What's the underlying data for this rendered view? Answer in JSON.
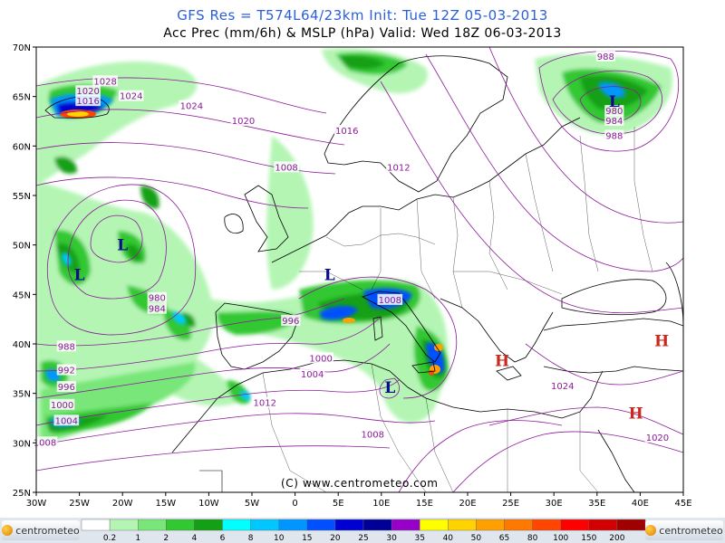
{
  "header": {
    "title": "GFS Res = T574L64/23km   Init: Tue 12Z 05-03-2013",
    "subtitle": "Acc Prec (mm/6h) & MSLP (hPa)  Valid: Wed 18Z 06-03-2013"
  },
  "map": {
    "lon_range": [
      -30,
      45
    ],
    "lat_range": [
      25,
      70
    ],
    "lat_labels": [
      "70N",
      "65N",
      "60N",
      "55N",
      "50N",
      "45N",
      "40N",
      "35N",
      "30N",
      "25N"
    ],
    "lon_labels": [
      "30W",
      "25W",
      "20W",
      "15W",
      "10W",
      "5W",
      "0",
      "5E",
      "10E",
      "15E",
      "20E",
      "25E",
      "30E",
      "35E",
      "40E",
      "45E"
    ],
    "copyright": "(C)  www.centrometeo.com",
    "pressure_labels": [
      {
        "text": "1028",
        "lon": -22,
        "lat": 66.5
      },
      {
        "text": "1024",
        "lon": -19,
        "lat": 65.0
      },
      {
        "text": "1024",
        "lon": -12,
        "lat": 64.0
      },
      {
        "text": "1020",
        "lon": -24,
        "lat": 65.5
      },
      {
        "text": "1016",
        "lon": -24,
        "lat": 64.5
      },
      {
        "text": "1020",
        "lon": -6,
        "lat": 62.5
      },
      {
        "text": "1016",
        "lon": 6,
        "lat": 61.5
      },
      {
        "text": "1012",
        "lon": 12,
        "lat": 57.8
      },
      {
        "text": "1008",
        "lon": -1,
        "lat": 57.8
      },
      {
        "text": "988",
        "lon": 36,
        "lat": 69.0
      },
      {
        "text": "980",
        "lon": 37,
        "lat": 63.5
      },
      {
        "text": "984",
        "lon": 37,
        "lat": 62.5
      },
      {
        "text": "988",
        "lon": 37,
        "lat": 61.0
      },
      {
        "text": "980",
        "lon": -16,
        "lat": 44.6
      },
      {
        "text": "984",
        "lon": -16,
        "lat": 43.5
      },
      {
        "text": "988",
        "lon": -26.5,
        "lat": 39.7
      },
      {
        "text": "992",
        "lon": -26.5,
        "lat": 37.3
      },
      {
        "text": "996",
        "lon": -26.5,
        "lat": 35.6
      },
      {
        "text": "996",
        "lon": -0.5,
        "lat": 42.3
      },
      {
        "text": "1000",
        "lon": -27,
        "lat": 33.8
      },
      {
        "text": "1000",
        "lon": 3,
        "lat": 38.5
      },
      {
        "text": "1004",
        "lon": -26.5,
        "lat": 32.2
      },
      {
        "text": "1004",
        "lon": 2,
        "lat": 36.9
      },
      {
        "text": "1008",
        "lon": -29,
        "lat": 30.0
      },
      {
        "text": "1008",
        "lon": 11,
        "lat": 44.4
      },
      {
        "text": "1008",
        "lon": 9,
        "lat": 30.8
      },
      {
        "text": "1012",
        "lon": -3.5,
        "lat": 34.0
      },
      {
        "text": "1024",
        "lon": 31,
        "lat": 35.7
      },
      {
        "text": "1020",
        "lon": 42,
        "lat": 30.5
      }
    ],
    "lows": [
      {
        "text": "L",
        "lon": 37,
        "lat": 64.5
      },
      {
        "text": "L",
        "lon": -20,
        "lat": 50.0
      },
      {
        "text": "L",
        "lon": -25,
        "lat": 47.0
      },
      {
        "text": "L",
        "lon": 4,
        "lat": 47.0
      },
      {
        "text": "L",
        "lon": 11,
        "lat": 35.6
      }
    ],
    "highs": [
      {
        "text": "H",
        "lon": 24,
        "lat": 38.3
      },
      {
        "text": "H",
        "lon": 42.5,
        "lat": 40.3
      },
      {
        "text": "H",
        "lon": 39.5,
        "lat": 33.0
      }
    ]
  },
  "legend": {
    "labels": [
      "0.2",
      "1",
      "2",
      "4",
      "6",
      "8",
      "10",
      "15",
      "20",
      "25",
      "30",
      "35",
      "40",
      "50",
      "65",
      "80",
      "100",
      "150",
      "200"
    ],
    "colors": [
      "#ffffff",
      "#b4f5b4",
      "#78e678",
      "#32c832",
      "#14a014",
      "#00ffff",
      "#00c8ff",
      "#0096ff",
      "#0050ff",
      "#0000d2",
      "#000096",
      "#9600c8",
      "#ffff00",
      "#ffd200",
      "#ffa000",
      "#ff7800",
      "#ff4600",
      "#ff0000",
      "#d20000",
      "#a00000"
    ],
    "logo_left": "centrometeo",
    "logo_right": "centrometeo"
  },
  "colors": {
    "isobar": "#8c1a9a",
    "axis": "#000000",
    "title": "#2b5fd9",
    "low": "#0a0a8c",
    "high": "#c8281e"
  }
}
